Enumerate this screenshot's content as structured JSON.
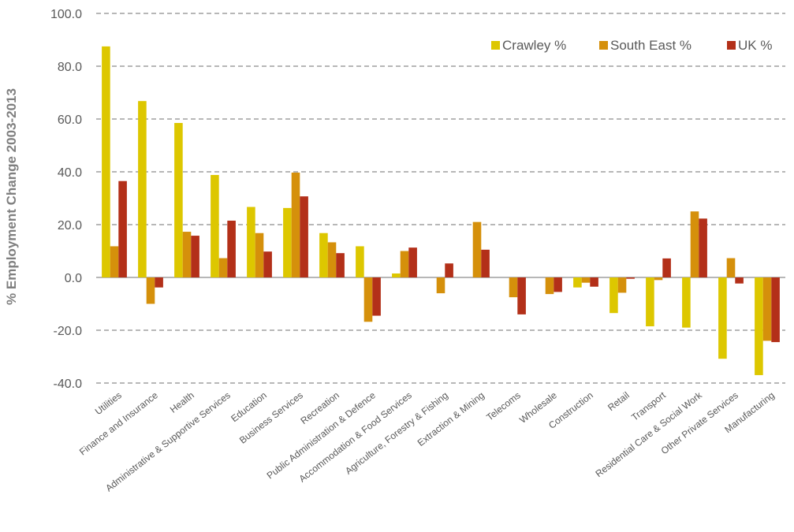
{
  "chart_data": {
    "type": "bar",
    "title": "",
    "xlabel": "",
    "ylabel": "% Employment Change 2003-2013",
    "ylim": [
      -40,
      100
    ],
    "yticks": [
      "100.0",
      "80.0",
      "60.0",
      "40.0",
      "20.0",
      "0.0",
      "-20.0",
      "-40.0"
    ],
    "ytick_values": [
      100,
      80,
      60,
      40,
      20,
      0,
      -20,
      -40
    ],
    "grid": true,
    "legend_position": "top-right",
    "categories": [
      "Utilities",
      "Finance and Insurance",
      "Health",
      "Administrative & Supportive Services",
      "Education",
      "Business Services",
      "Recreation",
      "Public Administration & Defence",
      "Accommodation & Food Services",
      "Agriculture, Forestry & Fishing",
      "Extraction & Mining",
      "Telecoms",
      "Wholesale",
      "Construction",
      "Retail",
      "Transport",
      "Residential Care & Social Work",
      "Other Private Services",
      "Manufacturing"
    ],
    "series": [
      {
        "name": "Crawley %",
        "color": "#DDC700",
        "values": [
          87.5,
          66.8,
          58.5,
          38.8,
          26.7,
          26.3,
          16.8,
          11.8,
          1.5,
          0.0,
          0.0,
          0.0,
          0.0,
          -3.8,
          -13.5,
          -18.5,
          -19.0,
          -30.8,
          -37.0
        ]
      },
      {
        "name": "South East %",
        "color": "#D5900B",
        "values": [
          11.8,
          -10.0,
          17.3,
          7.3,
          16.8,
          39.7,
          13.3,
          -16.8,
          10.0,
          -6.0,
          21.0,
          -7.5,
          -6.3,
          -2.0,
          -5.8,
          -1.0,
          25.0,
          7.3,
          -24.0
        ]
      },
      {
        "name": "UK %",
        "color": "#B33019",
        "values": [
          36.5,
          -3.8,
          15.8,
          21.5,
          9.8,
          30.7,
          9.2,
          -14.5,
          11.3,
          5.3,
          10.5,
          -14.0,
          -5.5,
          -3.5,
          -0.5,
          7.2,
          22.3,
          -2.3,
          -24.5
        ]
      }
    ]
  }
}
